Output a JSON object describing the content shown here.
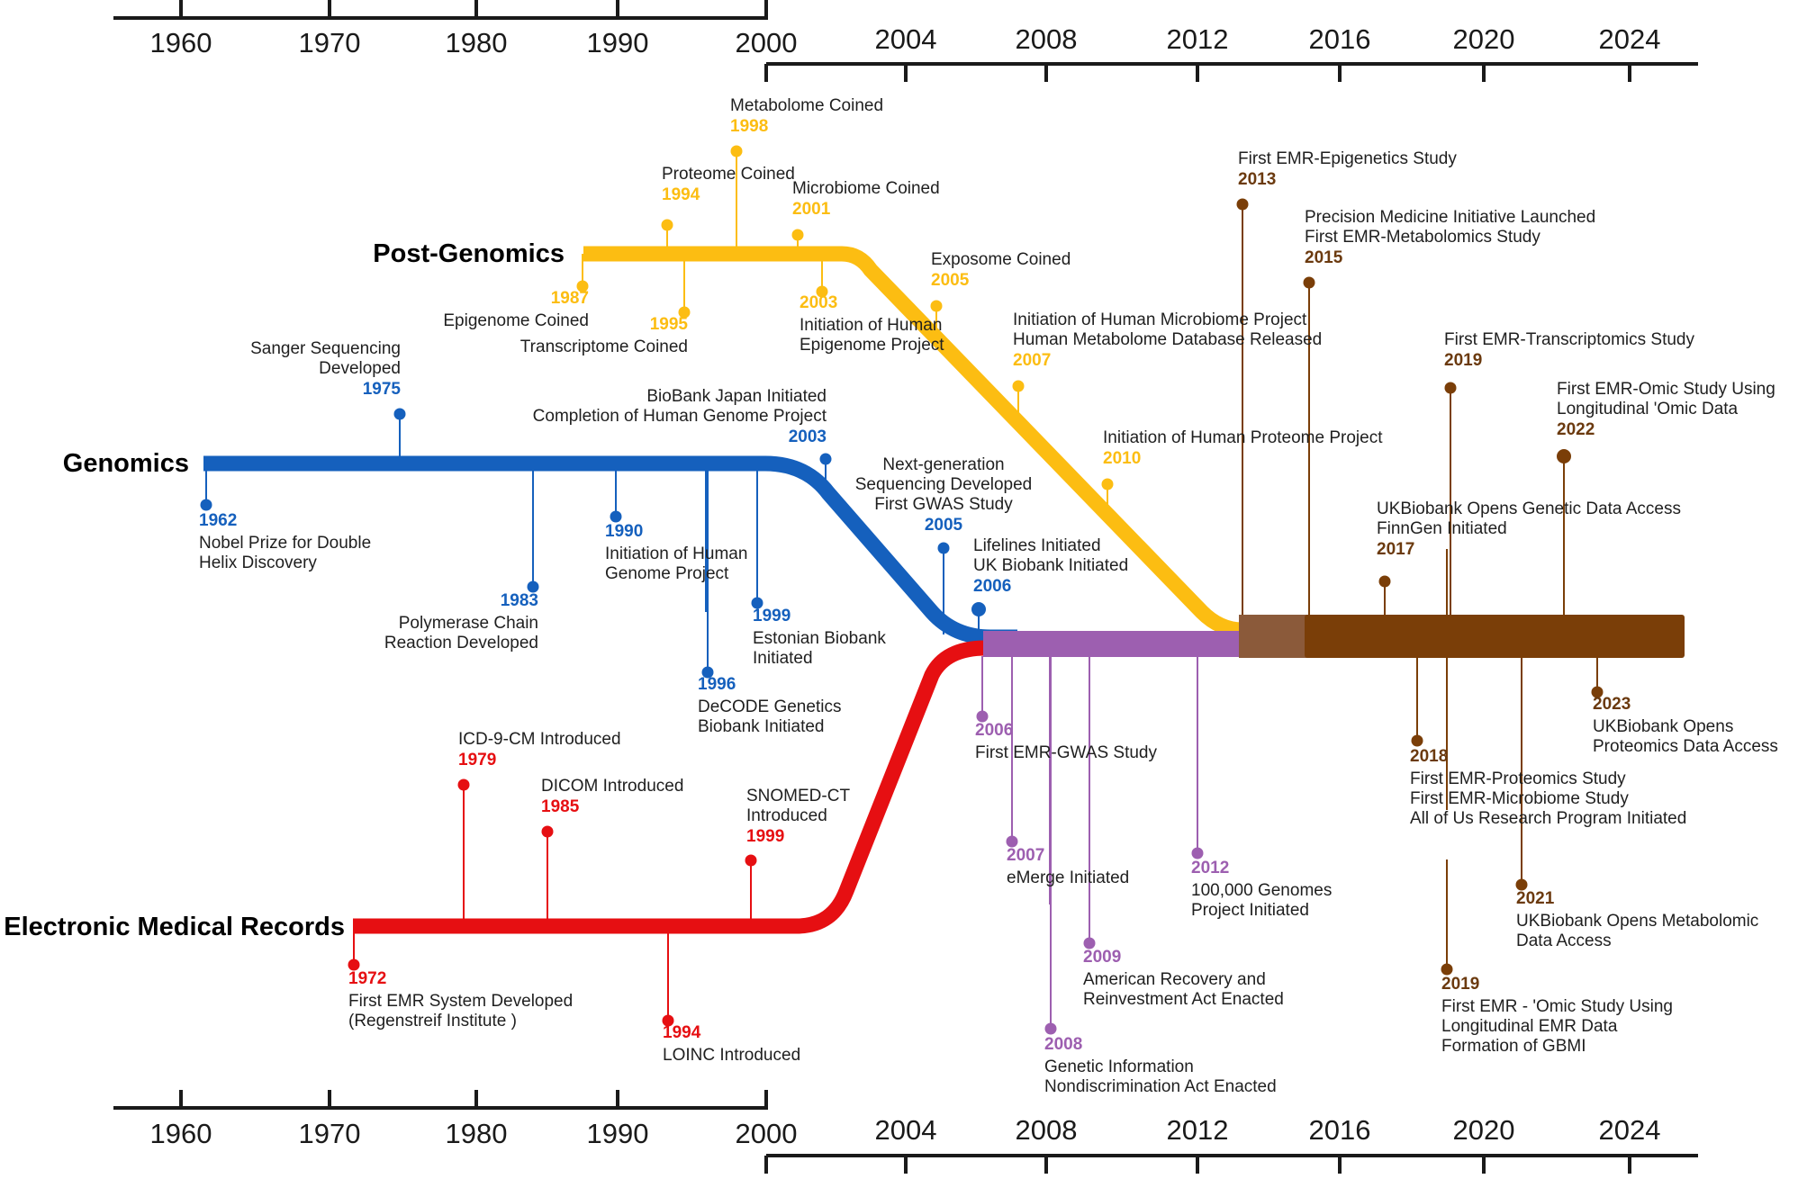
{
  "colors": {
    "genomics": "#1560bd",
    "post_genomics": "#fcbd12",
    "emr": "#e60f12",
    "emr_genomics": "#9d5fb0",
    "emr_omics": "#7a3e08",
    "axis": "#1a1a1a"
  },
  "axes": {
    "left_labels": [
      "1960",
      "1970",
      "1980",
      "1990",
      "2000"
    ],
    "right_labels": [
      "2004",
      "2008",
      "2012",
      "2016",
      "2020",
      "2024"
    ]
  },
  "tracks": {
    "genomics": "Genomics",
    "post_genomics": "Post-Genomics",
    "emr": "Electronic Medical Records"
  },
  "events": {
    "genomics": [
      {
        "year": "1962",
        "lines": [
          "Nobel Prize for Double",
          "Helix Discovery"
        ]
      },
      {
        "year": "1975",
        "lines": [
          "Sanger Sequencing",
          "Developed"
        ]
      },
      {
        "year": "1983",
        "lines": [
          "Polymerase Chain",
          "Reaction Developed"
        ]
      },
      {
        "year": "1990",
        "lines": [
          "Initiation of Human",
          "Genome Project"
        ]
      },
      {
        "year": "1996",
        "lines": [
          "DeCODE Genetics",
          "Biobank Initiated"
        ]
      },
      {
        "year": "1999",
        "lines": [
          "Estonian Biobank",
          "Initiated"
        ]
      },
      {
        "year": "2003",
        "lines": [
          "BioBank Japan Initiated",
          "Completion of Human Genome Project"
        ]
      },
      {
        "year": "2005",
        "lines": [
          "Next-generation",
          "Sequencing Developed",
          "First GWAS Study"
        ]
      },
      {
        "year": "2006",
        "lines": [
          "Lifelines Initiated",
          "UK Biobank Initiated"
        ]
      }
    ],
    "post_genomics": [
      {
        "year": "1987",
        "lines": [
          "Epigenome Coined"
        ]
      },
      {
        "year": "1994",
        "lines": [
          "Proteome Coined"
        ]
      },
      {
        "year": "1995",
        "lines": [
          "Transcriptome Coined"
        ]
      },
      {
        "year": "1998",
        "lines": [
          "Metabolome Coined"
        ]
      },
      {
        "year": "2001",
        "lines": [
          "Microbiome Coined"
        ]
      },
      {
        "year": "2003",
        "lines": [
          "Initiation of Human",
          "Epigenome Project"
        ]
      },
      {
        "year": "2005",
        "lines": [
          "Exposome Coined"
        ]
      },
      {
        "year": "2007",
        "lines": [
          "Initiation of Human Microbiome Project",
          "Human Metabolome Database Released"
        ]
      },
      {
        "year": "2010",
        "lines": [
          "Initiation of Human Proteome Project"
        ]
      }
    ],
    "emr": [
      {
        "year": "1972",
        "lines": [
          "First EMR System Developed",
          "(Regenstreif Institute )"
        ]
      },
      {
        "year": "1979",
        "lines": [
          "ICD-9-CM Introduced"
        ]
      },
      {
        "year": "1985",
        "lines": [
          "DICOM Introduced"
        ]
      },
      {
        "year": "1994",
        "lines": [
          "LOINC Introduced"
        ]
      },
      {
        "year": "1999",
        "lines": [
          "SNOMED-CT",
          "Introduced"
        ]
      }
    ],
    "emr_genomics": [
      {
        "year": "2006",
        "lines": [
          "First EMR-GWAS Study"
        ]
      },
      {
        "year": "2007",
        "lines": [
          "eMerge Initiated"
        ]
      },
      {
        "year": "2008",
        "lines": [
          "Genetic Information",
          "Nondiscrimination Act Enacted"
        ]
      },
      {
        "year": "2009",
        "lines": [
          "American Recovery and",
          "Reinvestment Act Enacted"
        ]
      },
      {
        "year": "2012",
        "lines": [
          "100,000 Genomes",
          "Project Initiated"
        ]
      }
    ],
    "emr_omics": [
      {
        "year": "2013",
        "lines": [
          "First EMR-Epigenetics Study"
        ]
      },
      {
        "year": "2015",
        "lines": [
          "Precision Medicine Initiative Launched",
          "First EMR-Metabolomics Study"
        ]
      },
      {
        "year": "2017",
        "lines": [
          "UKBiobank Opens Genetic Data Access",
          "FinnGen Initiated"
        ]
      },
      {
        "year": "2018",
        "lines": [
          "First EMR-Proteomics Study",
          "First EMR-Microbiome Study",
          "All of Us Research Program Initiated"
        ]
      },
      {
        "year": "2019",
        "lines": [
          "First EMR-Transcriptomics Study"
        ]
      },
      {
        "year": "2019",
        "lines": [
          "First EMR - 'Omic Study Using",
          "Longitudinal EMR Data",
          "Formation of GBMI"
        ]
      },
      {
        "year": "2021",
        "lines": [
          "UKBiobank Opens Metabolomic",
          "Data Access"
        ]
      },
      {
        "year": "2022",
        "lines": [
          "First  EMR-Omic Study Using",
          "Longitudinal 'Omic Data"
        ]
      },
      {
        "year": "2023",
        "lines": [
          "UKBiobank Opens",
          "Proteomics Data Access"
        ]
      }
    ]
  }
}
